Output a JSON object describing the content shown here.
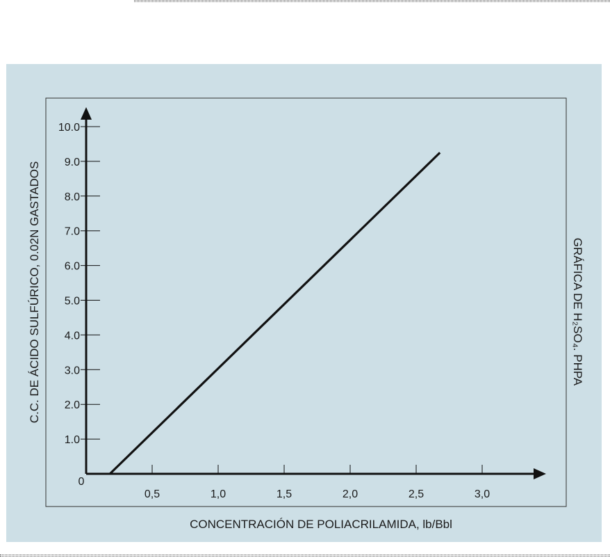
{
  "colors": {
    "panel_background": "#cddfe6",
    "plot_background": "#cddfe6",
    "axis_color": "#111111",
    "line_color": "#111111"
  },
  "chart_data": {
    "type": "line",
    "xlabel": "CONCENTRACIÓN DE POLIACRILAMIDA, lb/Bbl",
    "ylabel": "C.C. DE ÁCIDO SULFÚRICO, 0.02N GASTADOS",
    "side_title": "GRÁFICA DE H₂SO₄. PHPA",
    "origin_label": "0",
    "xlim": [
      0,
      3.5
    ],
    "ylim": [
      0,
      10.9
    ],
    "x_ticks": [
      {
        "value": 0.5,
        "label": "0,5"
      },
      {
        "value": 1.0,
        "label": "1,0"
      },
      {
        "value": 1.5,
        "label": "1,5"
      },
      {
        "value": 2.0,
        "label": "2,0"
      },
      {
        "value": 2.5,
        "label": "2,5"
      },
      {
        "value": 3.0,
        "label": "3,0"
      }
    ],
    "y_ticks": [
      {
        "value": 1.0,
        "label": "1.0"
      },
      {
        "value": 2.0,
        "label": "2.0"
      },
      {
        "value": 3.0,
        "label": "3.0"
      },
      {
        "value": 4.0,
        "label": "4.0"
      },
      {
        "value": 5.0,
        "label": "5.0"
      },
      {
        "value": 6.0,
        "label": "6.0"
      },
      {
        "value": 7.0,
        "label": "7.0"
      },
      {
        "value": 8.0,
        "label": "8.0"
      },
      {
        "value": 9.0,
        "label": "9.0"
      },
      {
        "value": 10.0,
        "label": "10.0"
      }
    ],
    "grid": false,
    "series": [
      {
        "x": [
          0.18,
          2.68
        ],
        "y": [
          0.0,
          9.25
        ]
      }
    ]
  }
}
